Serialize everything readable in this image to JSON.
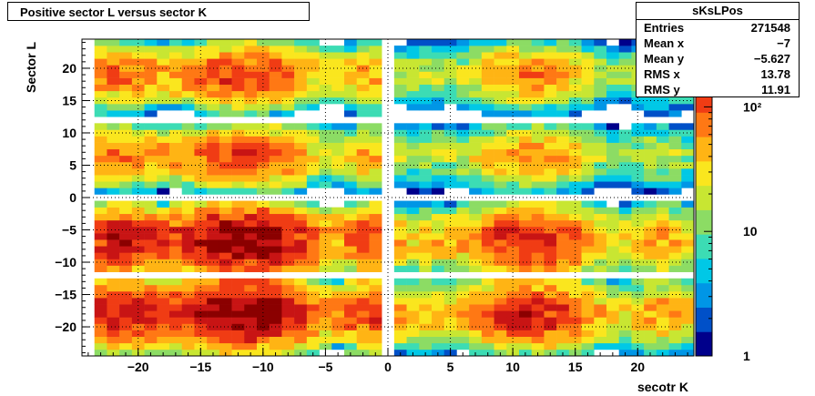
{
  "title": "Positive sector L versus sector K",
  "stats": {
    "name": "sKsLPos",
    "rows": [
      {
        "label": "Entries",
        "value": "271548"
      },
      {
        "label": "Mean x",
        "value": "−7"
      },
      {
        "label": "Mean y",
        "value": "−5.627"
      },
      {
        "label": "RMS x",
        "value": "13.78"
      },
      {
        "label": "RMS y",
        "value": "11.91"
      }
    ]
  },
  "chart_data": {
    "type": "heatmap",
    "title": "Positive sector L versus sector K",
    "xlabel": "secotr K",
    "ylabel": "Sector L",
    "xlim": [
      -24.5,
      24.5
    ],
    "ylim": [
      -24.5,
      24.5
    ],
    "x_ticks": [
      -20,
      -15,
      -10,
      -5,
      0,
      5,
      10,
      15,
      20
    ],
    "x_tick_labels": [
      "−20",
      "−15",
      "−10",
      "−5",
      "0",
      "5",
      "10",
      "15",
      "20"
    ],
    "y_ticks": [
      20,
      15,
      10,
      5,
      0,
      -5,
      -10,
      -15,
      -20
    ],
    "y_tick_labels": [
      "20",
      "15",
      "10",
      "5",
      "0",
      "−5",
      "−10",
      "−15",
      "−20"
    ],
    "z_scale": "log",
    "z_range": [
      1,
      350
    ],
    "z_ticks": [
      1,
      10,
      100
    ],
    "z_tick_labels": [
      "1",
      "10",
      "10²"
    ],
    "grid": true,
    "palette": [
      "#00008b",
      "#0050c8",
      "#0096e6",
      "#00c8e6",
      "#3cdcb4",
      "#8cdc64",
      "#c8e632",
      "#fae61e",
      "#ffb414",
      "#ff7814",
      "#f03c14",
      "#c81414",
      "#8b0000"
    ],
    "cluster_columns": [
      {
        "center": -21.5,
        "width": 4.5,
        "peak": 180
      },
      {
        "center": -11.5,
        "width": 6.5,
        "peak": 300
      },
      {
        "center": -1.5,
        "width": 2.5,
        "peak": 130
      },
      {
        "center": 3.0,
        "width": 3.0,
        "peak": 40
      },
      {
        "center": 11.5,
        "width": 6.0,
        "peak": 160
      },
      {
        "center": 22.0,
        "width": 3.5,
        "peak": 60
      }
    ],
    "cluster_rows": [
      {
        "center": 19.0,
        "height": 4.5,
        "weight": 0.45
      },
      {
        "center": 6.5,
        "height": 4.5,
        "weight": 0.4
      },
      {
        "center": -6.5,
        "height": 5.0,
        "weight": 1.0
      },
      {
        "center": -18.0,
        "height": 5.0,
        "weight": 1.0
      }
    ],
    "empty_k_bins": [
      -24,
      0
    ],
    "empty_l_bins": [
      12,
      0,
      -12
    ]
  }
}
